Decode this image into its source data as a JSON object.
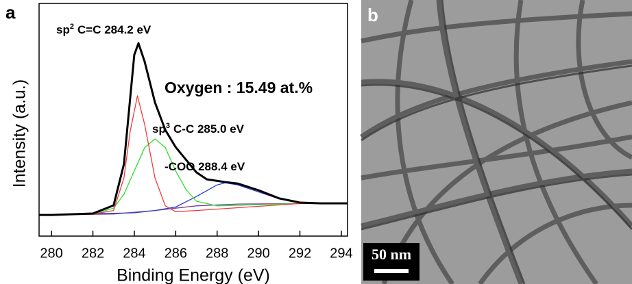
{
  "chart_data": {
    "type": "line",
    "panel_label": "a",
    "xlabel": "Binding Energy (eV)",
    "ylabel": "Intensity (a.u.)",
    "xlim": [
      279.4,
      294.3
    ],
    "xticks": [
      280,
      282,
      284,
      286,
      288,
      290,
      292,
      294
    ],
    "ylim": [
      0,
      100
    ],
    "annotations": [
      {
        "text": "sp",
        "sup": "2",
        "rest": "C=C 284.2 eV"
      },
      {
        "text": "Oxygen : 15.49 at.%"
      },
      {
        "text": "sp",
        "sup": "3",
        "rest": "C-C 285.0 eV"
      },
      {
        "text": "-COO 288.4 eV"
      }
    ],
    "series": [
      {
        "color": "#7a3fa0",
        "x": [
          279.4,
          280,
          283,
          285,
          287,
          289,
          294.3
        ],
        "values": [
          9.1,
          9.1,
          9.5,
          11,
          13,
          13.8,
          14.1
        ]
      },
      {
        "color": "#2a3fd0",
        "x": [
          279.4,
          284,
          285,
          286,
          287,
          288,
          288.4,
          289,
          290,
          291,
          292,
          293,
          294.3
        ],
        "values": [
          9.1,
          10,
          11,
          12.5,
          17,
          22,
          22.9,
          22,
          19,
          16,
          14.5,
          14.1,
          14.1
        ]
      },
      {
        "color": "#2ee02e",
        "x": [
          279.4,
          282,
          283,
          283.5,
          284,
          284.5,
          285,
          285.5,
          286,
          286.5,
          287,
          288,
          290,
          292,
          294.3
        ],
        "values": [
          9.1,
          9.5,
          12,
          18,
          28,
          38,
          41.8,
          38,
          28,
          20,
          15,
          13,
          13.5,
          14,
          14.1
        ]
      },
      {
        "color": "#f03a3a",
        "x": [
          279.4,
          282,
          283,
          283.5,
          283.8,
          284.15,
          284.5,
          285,
          285.5,
          286,
          287,
          292,
          294.3
        ],
        "values": [
          9.1,
          9.4,
          11,
          25,
          45,
          60.3,
          48,
          25,
          13,
          10.5,
          11,
          14,
          14.1
        ]
      },
      {
        "color": "#000000",
        "x": [
          279.4,
          280,
          282,
          283,
          283.5,
          284,
          284.2,
          284.5,
          285,
          285.5,
          286,
          287,
          287.5,
          288.4,
          289,
          290,
          291,
          292,
          293,
          294.3
        ],
        "values": [
          9.1,
          9.1,
          9.7,
          13.2,
          30.9,
          77.9,
          82.9,
          75,
          57.4,
          45.6,
          38.2,
          27.4,
          24.4,
          23.2,
          22.6,
          19.7,
          16.2,
          14.4,
          14.1,
          14.1
        ]
      }
    ]
  },
  "image": {
    "panel_label": "b",
    "scale_bar": "50 nm"
  }
}
